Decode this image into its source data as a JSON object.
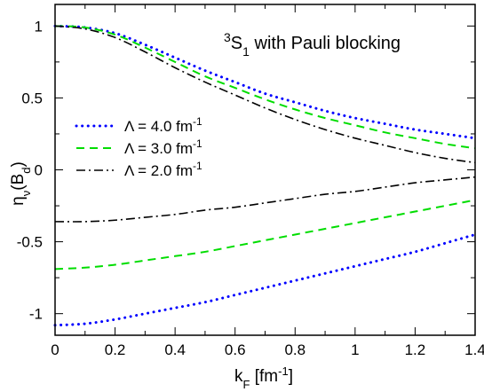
{
  "chart_data": {
    "type": "line",
    "annotation": {
      "sup": "3",
      "main": "S",
      "sub": "1",
      "rest": " with Pauli blocking"
    },
    "xlabel": {
      "main": "k",
      "sub": "F",
      "rest": " [fm",
      "sup": "-1",
      "close": "]"
    },
    "ylabel": {
      "main": "η",
      "sub1": "ν",
      "mid": "(B",
      "sub2": "d",
      "close": ")"
    },
    "xlim": [
      0,
      1.4
    ],
    "ylim": [
      -1.15,
      1.15
    ],
    "x_ticks": [
      "0",
      "0.2",
      "0.4",
      "0.6",
      "0.8",
      "1",
      "1.2",
      "1.4"
    ],
    "x_tick_values": [
      0,
      0.2,
      0.4,
      0.6,
      0.8,
      1.0,
      1.2,
      1.4
    ],
    "y_ticks": [
      "1",
      "0.5",
      "0",
      "-0.5",
      "-1"
    ],
    "y_tick_values": [
      1,
      0.5,
      0,
      -0.5,
      -1
    ],
    "legend_position": "center-left",
    "series": [
      {
        "name": "Λ = 4.0 fm",
        "name_sup": "-1",
        "color": "#0000ff",
        "style": "dotted",
        "upper": {
          "x": [
            0,
            0.1,
            0.2,
            0.3,
            0.4,
            0.5,
            0.6,
            0.7,
            0.8,
            0.9,
            1.0,
            1.1,
            1.2,
            1.3,
            1.4
          ],
          "y": [
            1.0,
            0.99,
            0.95,
            0.87,
            0.78,
            0.69,
            0.61,
            0.53,
            0.47,
            0.41,
            0.36,
            0.32,
            0.28,
            0.25,
            0.22
          ]
        },
        "lower": {
          "x": [
            0,
            0.1,
            0.2,
            0.3,
            0.4,
            0.5,
            0.6,
            0.7,
            0.8,
            0.9,
            1.0,
            1.1,
            1.2,
            1.3,
            1.4
          ],
          "y": [
            -1.08,
            -1.07,
            -1.04,
            -1.0,
            -0.96,
            -0.92,
            -0.87,
            -0.82,
            -0.77,
            -0.72,
            -0.67,
            -0.62,
            -0.57,
            -0.51,
            -0.45
          ]
        }
      },
      {
        "name": "Λ = 3.0 fm",
        "name_sup": "-1",
        "color": "#00dd00",
        "style": "dashed",
        "upper": {
          "x": [
            0,
            0.1,
            0.2,
            0.3,
            0.4,
            0.5,
            0.6,
            0.7,
            0.8,
            0.9,
            1.0,
            1.1,
            1.2,
            1.3,
            1.4
          ],
          "y": [
            1.0,
            0.99,
            0.94,
            0.85,
            0.75,
            0.65,
            0.57,
            0.49,
            0.42,
            0.36,
            0.31,
            0.26,
            0.22,
            0.18,
            0.15
          ]
        },
        "lower": {
          "x": [
            0,
            0.1,
            0.2,
            0.3,
            0.4,
            0.5,
            0.6,
            0.7,
            0.8,
            0.9,
            1.0,
            1.1,
            1.2,
            1.3,
            1.4
          ],
          "y": [
            -0.69,
            -0.68,
            -0.66,
            -0.63,
            -0.6,
            -0.57,
            -0.53,
            -0.49,
            -0.45,
            -0.41,
            -0.37,
            -0.33,
            -0.29,
            -0.25,
            -0.21
          ]
        }
      },
      {
        "name": "Λ = 2.0 fm",
        "name_sup": "-1",
        "color": "#000000",
        "style": "dashdot",
        "upper": {
          "x": [
            0,
            0.1,
            0.2,
            0.3,
            0.4,
            0.5,
            0.6,
            0.7,
            0.8,
            0.9,
            1.0,
            1.1,
            1.2,
            1.3,
            1.4
          ],
          "y": [
            1.0,
            0.98,
            0.92,
            0.82,
            0.71,
            0.61,
            0.52,
            0.43,
            0.35,
            0.28,
            0.22,
            0.17,
            0.12,
            0.08,
            0.05
          ]
        },
        "lower": {
          "x": [
            0,
            0.1,
            0.2,
            0.3,
            0.4,
            0.5,
            0.6,
            0.7,
            0.8,
            0.9,
            1.0,
            1.1,
            1.2,
            1.3,
            1.4
          ],
          "y": [
            -0.36,
            -0.36,
            -0.35,
            -0.33,
            -0.31,
            -0.28,
            -0.26,
            -0.23,
            -0.2,
            -0.17,
            -0.15,
            -0.12,
            -0.09,
            -0.07,
            -0.05
          ]
        }
      }
    ]
  }
}
